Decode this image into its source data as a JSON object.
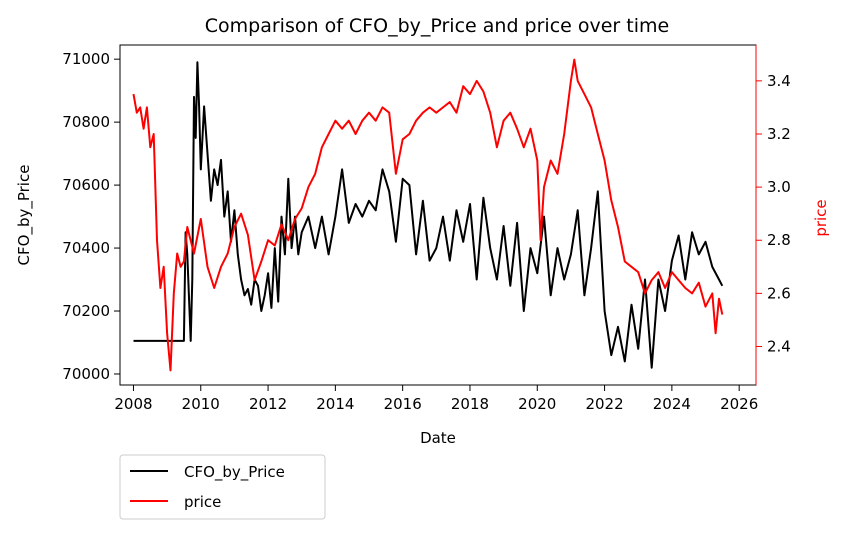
{
  "chart_data": {
    "type": "line",
    "title": "Comparison of CFO_by_Price and price over time",
    "xlabel": "Date",
    "ylabel_left": "CFO_by_Price",
    "ylabel_right": "price",
    "xlim": [
      2007.6,
      2026.5
    ],
    "ylim_left": [
      69965,
      71045
    ],
    "ylim_right": [
      2.255,
      3.535
    ],
    "x_ticks": [
      2008,
      2010,
      2012,
      2014,
      2016,
      2018,
      2020,
      2022,
      2024,
      2026
    ],
    "y_ticks_left": [
      70000,
      70200,
      70400,
      70600,
      70800,
      71000
    ],
    "y_ticks_right": [
      2.4,
      2.6,
      2.8,
      3.0,
      3.2,
      3.4
    ],
    "grid": false,
    "legend_placement": "below-left",
    "colors": {
      "CFO_by_Price": "#000000",
      "price": "#ff0000",
      "right_axis": "#ff0000"
    },
    "series": [
      {
        "name": "CFO_by_Price",
        "axis": "left",
        "color": "#000000",
        "x": [
          2008.0,
          2009.0,
          2009.5,
          2009.55,
          2009.6,
          2009.7,
          2009.75,
          2009.8,
          2009.85,
          2009.9,
          2009.95,
          2010.0,
          2010.1,
          2010.2,
          2010.3,
          2010.4,
          2010.5,
          2010.6,
          2010.7,
          2010.8,
          2010.9,
          2011.0,
          2011.1,
          2011.2,
          2011.3,
          2011.4,
          2011.5,
          2011.6,
          2011.7,
          2011.8,
          2011.9,
          2012.0,
          2012.1,
          2012.2,
          2012.3,
          2012.4,
          2012.5,
          2012.6,
          2012.7,
          2012.8,
          2012.9,
          2013.0,
          2013.2,
          2013.4,
          2013.6,
          2013.8,
          2014.0,
          2014.2,
          2014.4,
          2014.6,
          2014.8,
          2015.0,
          2015.2,
          2015.4,
          2015.6,
          2015.8,
          2016.0,
          2016.2,
          2016.4,
          2016.6,
          2016.8,
          2017.0,
          2017.2,
          2017.4,
          2017.6,
          2017.8,
          2018.0,
          2018.2,
          2018.4,
          2018.6,
          2018.8,
          2019.0,
          2019.2,
          2019.4,
          2019.6,
          2019.8,
          2020.0,
          2020.2,
          2020.4,
          2020.6,
          2020.8,
          2021.0,
          2021.2,
          2021.4,
          2021.6,
          2021.8,
          2022.0,
          2022.2,
          2022.4,
          2022.6,
          2022.8,
          2023.0,
          2023.2,
          2023.4,
          2023.6,
          2023.8,
          2024.0,
          2024.2,
          2024.4,
          2024.6,
          2024.8,
          2025.0,
          2025.2,
          2025.4,
          2025.5
        ],
        "values": [
          70105,
          70105,
          70105,
          70450,
          70380,
          70105,
          70300,
          70880,
          70750,
          70990,
          70850,
          70650,
          70850,
          70700,
          70550,
          70650,
          70600,
          70680,
          70500,
          70580,
          70420,
          70520,
          70380,
          70300,
          70250,
          70270,
          70220,
          70300,
          70280,
          70200,
          70250,
          70320,
          70210,
          70400,
          70230,
          70500,
          70380,
          70620,
          70400,
          70500,
          70380,
          70450,
          70500,
          70400,
          70500,
          70380,
          70500,
          70650,
          70480,
          70540,
          70500,
          70550,
          70520,
          70650,
          70580,
          70420,
          70620,
          70600,
          70380,
          70550,
          70360,
          70400,
          70500,
          70360,
          70520,
          70420,
          70540,
          70300,
          70560,
          70400,
          70300,
          70470,
          70280,
          70480,
          70200,
          70400,
          70320,
          70500,
          70250,
          70400,
          70300,
          70380,
          70520,
          70250,
          70400,
          70580,
          70200,
          70060,
          70150,
          70040,
          70220,
          70080,
          70300,
          70020,
          70300,
          70200,
          70360,
          70440,
          70300,
          70450,
          70380,
          70420,
          70340,
          70300,
          70280
        ]
      },
      {
        "name": "price",
        "axis": "right",
        "color": "#ff0000",
        "x": [
          2008.0,
          2008.1,
          2008.2,
          2008.3,
          2008.4,
          2008.5,
          2008.6,
          2008.7,
          2008.8,
          2008.9,
          2009.0,
          2009.1,
          2009.2,
          2009.3,
          2009.4,
          2009.5,
          2009.6,
          2009.8,
          2010.0,
          2010.2,
          2010.4,
          2010.6,
          2010.8,
          2011.0,
          2011.2,
          2011.4,
          2011.6,
          2011.8,
          2012.0,
          2012.2,
          2012.4,
          2012.6,
          2012.8,
          2013.0,
          2013.2,
          2013.4,
          2013.6,
          2013.8,
          2014.0,
          2014.2,
          2014.4,
          2014.6,
          2014.8,
          2015.0,
          2015.2,
          2015.4,
          2015.6,
          2015.8,
          2016.0,
          2016.2,
          2016.4,
          2016.6,
          2016.8,
          2017.0,
          2017.2,
          2017.4,
          2017.6,
          2017.8,
          2018.0,
          2018.2,
          2018.4,
          2018.6,
          2018.8,
          2019.0,
          2019.2,
          2019.4,
          2019.6,
          2019.8,
          2020.0,
          2020.1,
          2020.2,
          2020.4,
          2020.6,
          2020.8,
          2021.0,
          2021.1,
          2021.2,
          2021.4,
          2021.6,
          2021.8,
          2022.0,
          2022.2,
          2022.4,
          2022.6,
          2022.8,
          2023.0,
          2023.2,
          2023.4,
          2023.6,
          2023.8,
          2024.0,
          2024.2,
          2024.4,
          2024.6,
          2024.8,
          2025.0,
          2025.2,
          2025.3,
          2025.4,
          2025.5
        ],
        "values": [
          3.35,
          3.28,
          3.3,
          3.22,
          3.3,
          3.15,
          3.2,
          2.8,
          2.62,
          2.7,
          2.45,
          2.31,
          2.6,
          2.75,
          2.7,
          2.72,
          2.85,
          2.75,
          2.88,
          2.7,
          2.62,
          2.7,
          2.75,
          2.85,
          2.9,
          2.82,
          2.65,
          2.72,
          2.8,
          2.78,
          2.86,
          2.8,
          2.88,
          2.92,
          3.0,
          3.05,
          3.15,
          3.2,
          3.25,
          3.22,
          3.25,
          3.2,
          3.25,
          3.28,
          3.25,
          3.3,
          3.28,
          3.05,
          3.18,
          3.2,
          3.25,
          3.28,
          3.3,
          3.28,
          3.3,
          3.32,
          3.28,
          3.38,
          3.35,
          3.4,
          3.36,
          3.28,
          3.15,
          3.25,
          3.28,
          3.22,
          3.15,
          3.22,
          3.1,
          2.8,
          3.0,
          3.1,
          3.05,
          3.2,
          3.4,
          3.48,
          3.4,
          3.35,
          3.3,
          3.2,
          3.1,
          2.95,
          2.85,
          2.72,
          2.7,
          2.68,
          2.6,
          2.65,
          2.68,
          2.62,
          2.68,
          2.65,
          2.62,
          2.6,
          2.64,
          2.55,
          2.6,
          2.45,
          2.58,
          2.52
        ]
      }
    ]
  }
}
